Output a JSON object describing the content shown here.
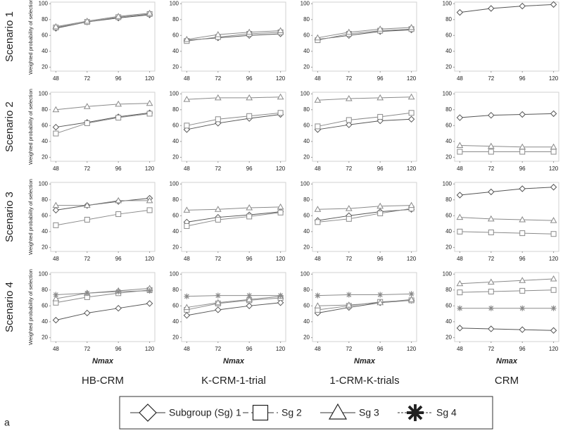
{
  "row_labels": [
    "Scenario 1",
    "Scenario 2",
    "Scenario 3",
    "Scenario 4"
  ],
  "column_labels": [
    "HB-CRM",
    "K-CRM-1-trial",
    "1-CRM-K-trials",
    "CRM"
  ],
  "panel_label": "a",
  "chart_data": [
    {
      "type": "line",
      "ylabel": "Weighted probability of selection",
      "x": [
        48,
        72,
        96,
        120
      ],
      "xlim": [
        44,
        124
      ],
      "xticks": [
        48,
        72,
        96,
        120
      ],
      "ylim": [
        15,
        102
      ],
      "yticks": [
        20,
        40,
        60,
        80,
        100
      ],
      "grid": false,
      "series": [
        {
          "name": "Subgroup (Sg) 1",
          "color": "#555555",
          "marker": "diamond",
          "values": [
            69,
            77,
            82,
            86
          ]
        },
        {
          "name": "Sg 2",
          "color": "#8a8a8a",
          "marker": "square",
          "values": [
            70,
            77,
            83,
            87
          ]
        },
        {
          "name": "Sg 3",
          "color": "#8a8a8a",
          "marker": "triangle",
          "values": [
            71,
            78,
            84,
            88
          ]
        }
      ]
    },
    {
      "type": "line",
      "x": [
        48,
        72,
        96,
        120
      ],
      "xlim": [
        44,
        124
      ],
      "xticks": [
        48,
        72,
        96,
        120
      ],
      "ylim": [
        15,
        102
      ],
      "yticks": [
        20,
        40,
        60,
        80,
        100
      ],
      "grid": false,
      "series": [
        {
          "name": "Subgroup (Sg) 1",
          "color": "#555555",
          "marker": "diamond",
          "values": [
            54,
            57,
            60,
            62
          ]
        },
        {
          "name": "Sg 2",
          "color": "#8a8a8a",
          "marker": "square",
          "values": [
            53,
            58,
            62,
            64
          ]
        },
        {
          "name": "Sg 3",
          "color": "#8a8a8a",
          "marker": "triangle",
          "values": [
            55,
            61,
            64,
            66
          ]
        }
      ]
    },
    {
      "type": "line",
      "x": [
        48,
        72,
        96,
        120
      ],
      "xlim": [
        44,
        124
      ],
      "xticks": [
        48,
        72,
        96,
        120
      ],
      "ylim": [
        15,
        102
      ],
      "yticks": [
        20,
        40,
        60,
        80,
        100
      ],
      "grid": false,
      "series": [
        {
          "name": "Subgroup (Sg) 1",
          "color": "#555555",
          "marker": "diamond",
          "values": [
            55,
            60,
            65,
            67
          ]
        },
        {
          "name": "Sg 2",
          "color": "#8a8a8a",
          "marker": "square",
          "values": [
            54,
            62,
            66,
            68
          ]
        },
        {
          "name": "Sg 3",
          "color": "#8a8a8a",
          "marker": "triangle",
          "values": [
            57,
            64,
            68,
            70
          ]
        }
      ]
    },
    {
      "type": "line",
      "x": [
        48,
        72,
        96,
        120
      ],
      "xlim": [
        44,
        124
      ],
      "xticks": [
        48,
        72,
        96,
        120
      ],
      "ylim": [
        15,
        102
      ],
      "yticks": [
        20,
        40,
        60,
        80,
        100
      ],
      "grid": false,
      "series": [
        {
          "name": "Subgroup (Sg) 1",
          "color": "#555555",
          "marker": "diamond",
          "values": [
            89,
            94,
            97,
            99
          ]
        }
      ]
    },
    {
      "type": "line",
      "ylabel": "Weighted probability of selection",
      "x": [
        48,
        72,
        96,
        120
      ],
      "xlim": [
        44,
        124
      ],
      "xticks": [
        48,
        72,
        96,
        120
      ],
      "ylim": [
        15,
        102
      ],
      "yticks": [
        20,
        40,
        60,
        80,
        100
      ],
      "grid": false,
      "series": [
        {
          "name": "Subgroup (Sg) 1",
          "color": "#555555",
          "marker": "diamond",
          "values": [
            58,
            64,
            71,
            76
          ]
        },
        {
          "name": "Sg 2",
          "color": "#8a8a8a",
          "marker": "square",
          "values": [
            50,
            63,
            70,
            75
          ]
        },
        {
          "name": "Sg 3",
          "color": "#8a8a8a",
          "marker": "triangle",
          "values": [
            80,
            84,
            87,
            88
          ]
        }
      ]
    },
    {
      "type": "line",
      "x": [
        48,
        72,
        96,
        120
      ],
      "xlim": [
        44,
        124
      ],
      "xticks": [
        48,
        72,
        96,
        120
      ],
      "ylim": [
        15,
        102
      ],
      "yticks": [
        20,
        40,
        60,
        80,
        100
      ],
      "grid": false,
      "series": [
        {
          "name": "Subgroup (Sg) 1",
          "color": "#555555",
          "marker": "diamond",
          "values": [
            55,
            63,
            69,
            74
          ]
        },
        {
          "name": "Sg 2",
          "color": "#8a8a8a",
          "marker": "square",
          "values": [
            60,
            68,
            72,
            76
          ]
        },
        {
          "name": "Sg 3",
          "color": "#8a8a8a",
          "marker": "triangle",
          "values": [
            93,
            95,
            95,
            96
          ]
        }
      ]
    },
    {
      "type": "line",
      "x": [
        48,
        72,
        96,
        120
      ],
      "xlim": [
        44,
        124
      ],
      "xticks": [
        48,
        72,
        96,
        120
      ],
      "ylim": [
        15,
        102
      ],
      "yticks": [
        20,
        40,
        60,
        80,
        100
      ],
      "grid": false,
      "series": [
        {
          "name": "Subgroup (Sg) 1",
          "color": "#555555",
          "marker": "diamond",
          "values": [
            55,
            61,
            66,
            68
          ]
        },
        {
          "name": "Sg 2",
          "color": "#8a8a8a",
          "marker": "square",
          "values": [
            59,
            67,
            71,
            76
          ]
        },
        {
          "name": "Sg 3",
          "color": "#8a8a8a",
          "marker": "triangle",
          "values": [
            92,
            94,
            95,
            96
          ]
        }
      ]
    },
    {
      "type": "line",
      "x": [
        48,
        72,
        96,
        120
      ],
      "xlim": [
        44,
        124
      ],
      "xticks": [
        48,
        72,
        96,
        120
      ],
      "ylim": [
        15,
        102
      ],
      "yticks": [
        20,
        40,
        60,
        80,
        100
      ],
      "grid": false,
      "series": [
        {
          "name": "Subgroup (Sg) 1",
          "color": "#555555",
          "marker": "diamond",
          "values": [
            70,
            73,
            74,
            75
          ]
        },
        {
          "name": "Sg 2",
          "color": "#8a8a8a",
          "marker": "square",
          "values": [
            27,
            27,
            27,
            27
          ]
        },
        {
          "name": "Sg 3",
          "color": "#8a8a8a",
          "marker": "triangle",
          "values": [
            35,
            34,
            33,
            33
          ]
        }
      ]
    },
    {
      "type": "line",
      "ylabel": "Weighted probability of selection",
      "x": [
        48,
        72,
        96,
        120
      ],
      "xlim": [
        44,
        124
      ],
      "xticks": [
        48,
        72,
        96,
        120
      ],
      "ylim": [
        15,
        102
      ],
      "yticks": [
        20,
        40,
        60,
        80,
        100
      ],
      "grid": false,
      "series": [
        {
          "name": "Subgroup (Sg) 1",
          "color": "#555555",
          "marker": "diamond",
          "values": [
            67,
            73,
            78,
            82
          ]
        },
        {
          "name": "Sg 2",
          "color": "#8a8a8a",
          "marker": "square",
          "values": [
            48,
            55,
            62,
            67
          ]
        },
        {
          "name": "Sg 3",
          "color": "#8a8a8a",
          "marker": "triangle",
          "values": [
            73,
            73,
            79,
            79
          ]
        }
      ]
    },
    {
      "type": "line",
      "x": [
        48,
        72,
        96,
        120
      ],
      "xlim": [
        44,
        124
      ],
      "xticks": [
        48,
        72,
        96,
        120
      ],
      "ylim": [
        15,
        102
      ],
      "yticks": [
        20,
        40,
        60,
        80,
        100
      ],
      "grid": false,
      "series": [
        {
          "name": "Subgroup (Sg) 1",
          "color": "#555555",
          "marker": "diamond",
          "values": [
            52,
            58,
            61,
            65
          ]
        },
        {
          "name": "Sg 2",
          "color": "#8a8a8a",
          "marker": "square",
          "values": [
            47,
            55,
            59,
            64
          ]
        },
        {
          "name": "Sg 3",
          "color": "#8a8a8a",
          "marker": "triangle",
          "values": [
            67,
            68,
            70,
            71
          ]
        }
      ]
    },
    {
      "type": "line",
      "x": [
        48,
        72,
        96,
        120
      ],
      "xlim": [
        44,
        124
      ],
      "xticks": [
        48,
        72,
        96,
        120
      ],
      "ylim": [
        15,
        102
      ],
      "yticks": [
        20,
        40,
        60,
        80,
        100
      ],
      "grid": false,
      "series": [
        {
          "name": "Subgroup (Sg) 1",
          "color": "#555555",
          "marker": "diamond",
          "values": [
            54,
            60,
            65,
            68
          ]
        },
        {
          "name": "Sg 2",
          "color": "#8a8a8a",
          "marker": "square",
          "values": [
            52,
            56,
            63,
            69
          ]
        },
        {
          "name": "Sg 3",
          "color": "#8a8a8a",
          "marker": "triangle",
          "values": [
            68,
            69,
            72,
            73
          ]
        }
      ]
    },
    {
      "type": "line",
      "x": [
        48,
        72,
        96,
        120
      ],
      "xlim": [
        44,
        124
      ],
      "xticks": [
        48,
        72,
        96,
        120
      ],
      "ylim": [
        15,
        102
      ],
      "yticks": [
        20,
        40,
        60,
        80,
        100
      ],
      "grid": false,
      "series": [
        {
          "name": "Subgroup (Sg) 1",
          "color": "#555555",
          "marker": "diamond",
          "values": [
            86,
            90,
            94,
            96
          ]
        },
        {
          "name": "Sg 2",
          "color": "#8a8a8a",
          "marker": "square",
          "values": [
            40,
            39,
            38,
            37
          ]
        },
        {
          "name": "Sg 3",
          "color": "#8a8a8a",
          "marker": "triangle",
          "values": [
            58,
            56,
            55,
            54
          ]
        }
      ]
    },
    {
      "type": "line",
      "ylabel": "Weighted probability of selection",
      "xlabel": "Nmax",
      "x": [
        48,
        72,
        96,
        120
      ],
      "xlim": [
        44,
        124
      ],
      "xticks": [
        48,
        72,
        96,
        120
      ],
      "ylim": [
        15,
        102
      ],
      "yticks": [
        20,
        40,
        60,
        80,
        100
      ],
      "grid": false,
      "series": [
        {
          "name": "Subgroup (Sg) 1",
          "color": "#555555",
          "marker": "diamond",
          "values": [
            42,
            51,
            57,
            63
          ]
        },
        {
          "name": "Sg 2",
          "color": "#8a8a8a",
          "marker": "square",
          "values": [
            64,
            71,
            76,
            80
          ]
        },
        {
          "name": "Sg 3",
          "color": "#8a8a8a",
          "marker": "triangle",
          "values": [
            69,
            76,
            79,
            82
          ]
        },
        {
          "name": "Sg 4",
          "color": "#8a8a8a",
          "marker": "star",
          "values": [
            74,
            76,
            78,
            79
          ]
        }
      ]
    },
    {
      "type": "line",
      "xlabel": "Nmax",
      "x": [
        48,
        72,
        96,
        120
      ],
      "xlim": [
        44,
        124
      ],
      "xticks": [
        48,
        72,
        96,
        120
      ],
      "ylim": [
        15,
        102
      ],
      "yticks": [
        20,
        40,
        60,
        80,
        100
      ],
      "grid": false,
      "series": [
        {
          "name": "Subgroup (Sg) 1",
          "color": "#555555",
          "marker": "diamond",
          "values": [
            48,
            55,
            60,
            64
          ]
        },
        {
          "name": "Sg 2",
          "color": "#8a8a8a",
          "marker": "square",
          "values": [
            55,
            63,
            67,
            70
          ]
        },
        {
          "name": "Sg 3",
          "color": "#8a8a8a",
          "marker": "triangle",
          "values": [
            58,
            64,
            68,
            72
          ]
        },
        {
          "name": "Sg 4",
          "color": "#8a8a8a",
          "marker": "star",
          "values": [
            72,
            73,
            73,
            73
          ]
        }
      ]
    },
    {
      "type": "line",
      "xlabel": "Nmax",
      "x": [
        48,
        72,
        96,
        120
      ],
      "xlim": [
        44,
        124
      ],
      "xticks": [
        48,
        72,
        96,
        120
      ],
      "ylim": [
        15,
        102
      ],
      "yticks": [
        20,
        40,
        60,
        80,
        100
      ],
      "grid": false,
      "series": [
        {
          "name": "Subgroup (Sg) 1",
          "color": "#555555",
          "marker": "diamond",
          "values": [
            51,
            58,
            64,
            67
          ]
        },
        {
          "name": "Sg 2",
          "color": "#8a8a8a",
          "marker": "square",
          "values": [
            55,
            60,
            65,
            67
          ]
        },
        {
          "name": "Sg 3",
          "color": "#8a8a8a",
          "marker": "triangle",
          "values": [
            60,
            61,
            64,
            68
          ]
        },
        {
          "name": "Sg 4",
          "color": "#8a8a8a",
          "marker": "star",
          "values": [
            73,
            74,
            74,
            75
          ]
        }
      ]
    },
    {
      "type": "line",
      "xlabel": "Nmax",
      "x": [
        48,
        72,
        96,
        120
      ],
      "xlim": [
        44,
        124
      ],
      "xticks": [
        48,
        72,
        96,
        120
      ],
      "ylim": [
        15,
        102
      ],
      "yticks": [
        20,
        40,
        60,
        80,
        100
      ],
      "grid": false,
      "series": [
        {
          "name": "Subgroup (Sg) 1",
          "color": "#555555",
          "marker": "diamond",
          "values": [
            32,
            31,
            30,
            29
          ]
        },
        {
          "name": "Sg 2",
          "color": "#8a8a8a",
          "marker": "square",
          "values": [
            77,
            78,
            79,
            80
          ]
        },
        {
          "name": "Sg 3",
          "color": "#8a8a8a",
          "marker": "triangle",
          "values": [
            88,
            90,
            92,
            94
          ]
        },
        {
          "name": "Sg 4",
          "color": "#8a8a8a",
          "marker": "star",
          "values": [
            57,
            57,
            57,
            57
          ]
        }
      ]
    }
  ]
}
